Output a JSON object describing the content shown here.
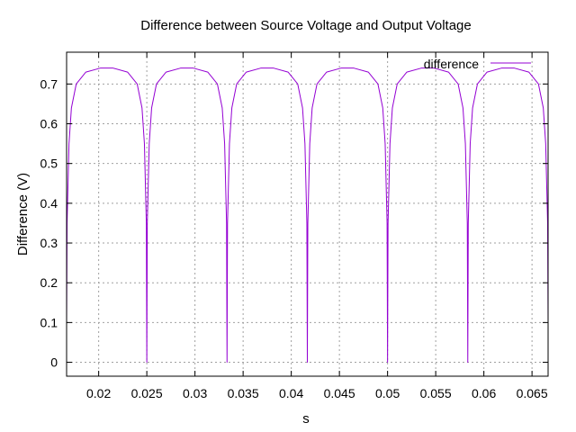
{
  "chart_data": {
    "type": "line",
    "title": "Difference between Source Voltage and Output Voltage",
    "xlabel": "s",
    "ylabel": "Difference (V)",
    "xlim": [
      0.01667,
      0.06667
    ],
    "ylim": [
      -0.035,
      0.78
    ],
    "x_ticks": [
      0.02,
      0.025,
      0.03,
      0.035,
      0.04,
      0.045,
      0.05,
      0.055,
      0.06,
      0.065
    ],
    "x_tick_labels": [
      "0.02",
      "0.025",
      "0.03",
      "0.035",
      "0.04",
      "0.045",
      "0.05",
      "0.055",
      "0.06",
      "0.065"
    ],
    "y_ticks": [
      0,
      0.1,
      0.2,
      0.3,
      0.4,
      0.5,
      0.6,
      0.7
    ],
    "y_tick_labels": [
      "0",
      "0.1",
      "0.2",
      "0.3",
      "0.4",
      "0.5",
      "0.6",
      "0.7"
    ],
    "grid": true,
    "legend": "top-right",
    "series": [
      {
        "name": "difference",
        "color": "#9400d3",
        "x": [
          0.01667,
          0.01672,
          0.01692,
          0.01717,
          0.01767,
          0.01867,
          0.02017,
          0.02083,
          0.0215,
          0.023,
          0.024,
          0.0245,
          0.02475,
          0.02495,
          0.025,
          0.02505,
          0.02525,
          0.0255,
          0.026,
          0.027,
          0.0285,
          0.02917,
          0.02983,
          0.03133,
          0.03233,
          0.03283,
          0.03308,
          0.03328,
          0.03333,
          0.03338,
          0.03358,
          0.03383,
          0.03433,
          0.03533,
          0.03683,
          0.0375,
          0.03817,
          0.03967,
          0.04067,
          0.04117,
          0.04142,
          0.04162,
          0.04167,
          0.04172,
          0.04192,
          0.04217,
          0.04267,
          0.04367,
          0.04517,
          0.04583,
          0.0465,
          0.048,
          0.049,
          0.0495,
          0.04975,
          0.04995,
          0.05,
          0.05005,
          0.05025,
          0.0505,
          0.051,
          0.052,
          0.0535,
          0.05417,
          0.05483,
          0.05633,
          0.05733,
          0.05783,
          0.05808,
          0.05828,
          0.05833,
          0.05838,
          0.05858,
          0.05883,
          0.05933,
          0.06033,
          0.06183,
          0.0625,
          0.06317,
          0.06467,
          0.06567,
          0.06617,
          0.06642,
          0.06662,
          0.06667
        ],
        "y": [
          0.1,
          0.35,
          0.55,
          0.64,
          0.7,
          0.73,
          0.74,
          0.74,
          0.74,
          0.73,
          0.7,
          0.64,
          0.55,
          0.35,
          0.0,
          0.35,
          0.55,
          0.64,
          0.7,
          0.73,
          0.74,
          0.74,
          0.74,
          0.73,
          0.7,
          0.64,
          0.55,
          0.35,
          0.0,
          0.35,
          0.55,
          0.64,
          0.7,
          0.73,
          0.74,
          0.74,
          0.74,
          0.73,
          0.7,
          0.64,
          0.55,
          0.35,
          0.0,
          0.35,
          0.55,
          0.64,
          0.7,
          0.73,
          0.74,
          0.74,
          0.74,
          0.73,
          0.7,
          0.64,
          0.55,
          0.35,
          0.0,
          0.35,
          0.55,
          0.64,
          0.7,
          0.73,
          0.74,
          0.74,
          0.74,
          0.73,
          0.7,
          0.64,
          0.55,
          0.35,
          0.0,
          0.35,
          0.55,
          0.64,
          0.7,
          0.73,
          0.74,
          0.74,
          0.74,
          0.73,
          0.7,
          0.64,
          0.55,
          0.35,
          0.1
        ]
      }
    ]
  }
}
